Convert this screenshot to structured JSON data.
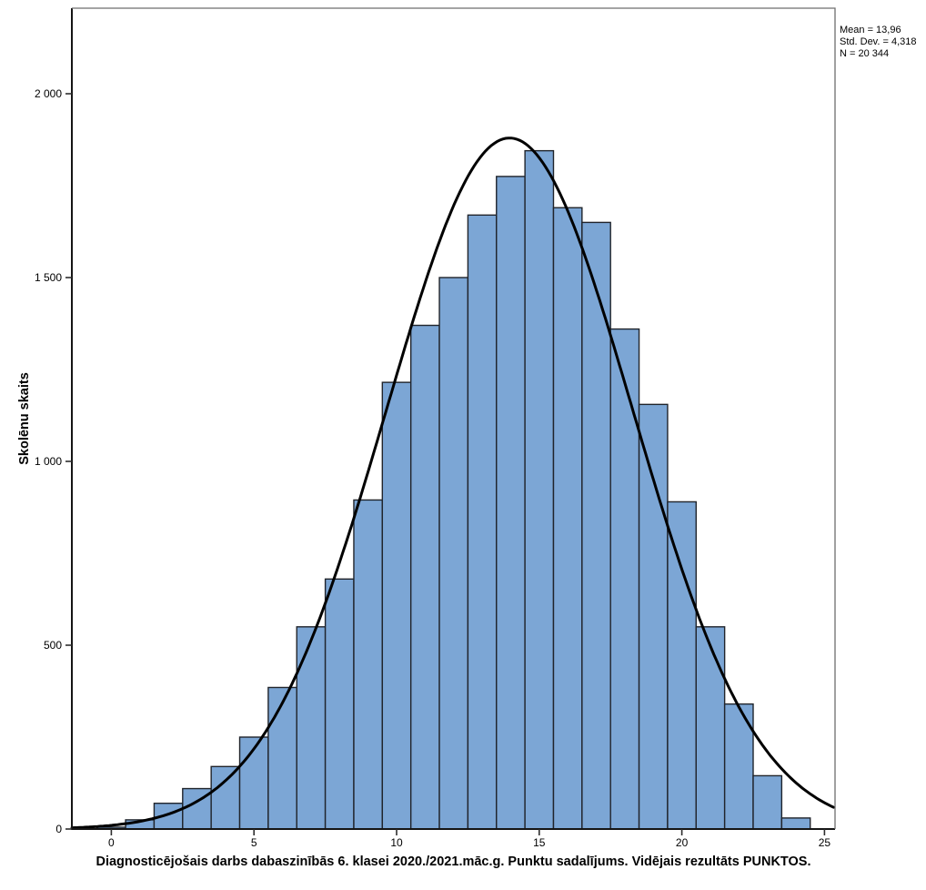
{
  "stats_box": {
    "lines": [
      "Mean = 13,96",
      "Std. Dev. = 4,318",
      "N = 20 344"
    ]
  },
  "chart_data": {
    "type": "bar",
    "subtype": "histogram-with-normal-curve",
    "title": "",
    "xlabel": "Diagnosticējošais darbs dabaszinībās 6. klasei 2020./2021.māc.g. Punktu sadalījums. Vidējais rezultāts PUNKTOS.",
    "ylabel": "Skolēnu skaits",
    "bin_width": 1,
    "bin_centers": [
      0,
      1,
      2,
      3,
      4,
      5,
      6,
      7,
      8,
      9,
      10,
      11,
      12,
      13,
      14,
      15,
      16,
      17,
      18,
      19,
      20,
      21,
      22,
      23,
      24
    ],
    "values": [
      5,
      25,
      70,
      110,
      170,
      250,
      385,
      550,
      680,
      895,
      1215,
      1370,
      1500,
      1670,
      1775,
      1845,
      1690,
      1650,
      1360,
      1155,
      890,
      550,
      340,
      145,
      30
    ],
    "x_tick_labels": [
      "0",
      "5",
      "10",
      "15",
      "20",
      "25"
    ],
    "x_tick_values": [
      0,
      5,
      10,
      15,
      20,
      25
    ],
    "y_tick_labels": [
      "0",
      "500",
      "1 000",
      "1 500",
      "2 000"
    ],
    "y_tick_values": [
      0,
      500,
      1000,
      1500,
      2000
    ],
    "xlim": [
      -1.38,
      25.37
    ],
    "ylim": [
      0,
      2232
    ],
    "grid": false,
    "legend": null,
    "normal_curve": {
      "mean": 13.96,
      "std_dev": 4.318,
      "n": 20344
    },
    "colors": {
      "bar_fill": "#7CA6D5",
      "bar_stroke": "#20242B",
      "curve": "#000000",
      "frame_dark": "#151515",
      "frame_light": "#6E6E6E",
      "tick": "#2E2E2E",
      "text": "#000000"
    }
  }
}
